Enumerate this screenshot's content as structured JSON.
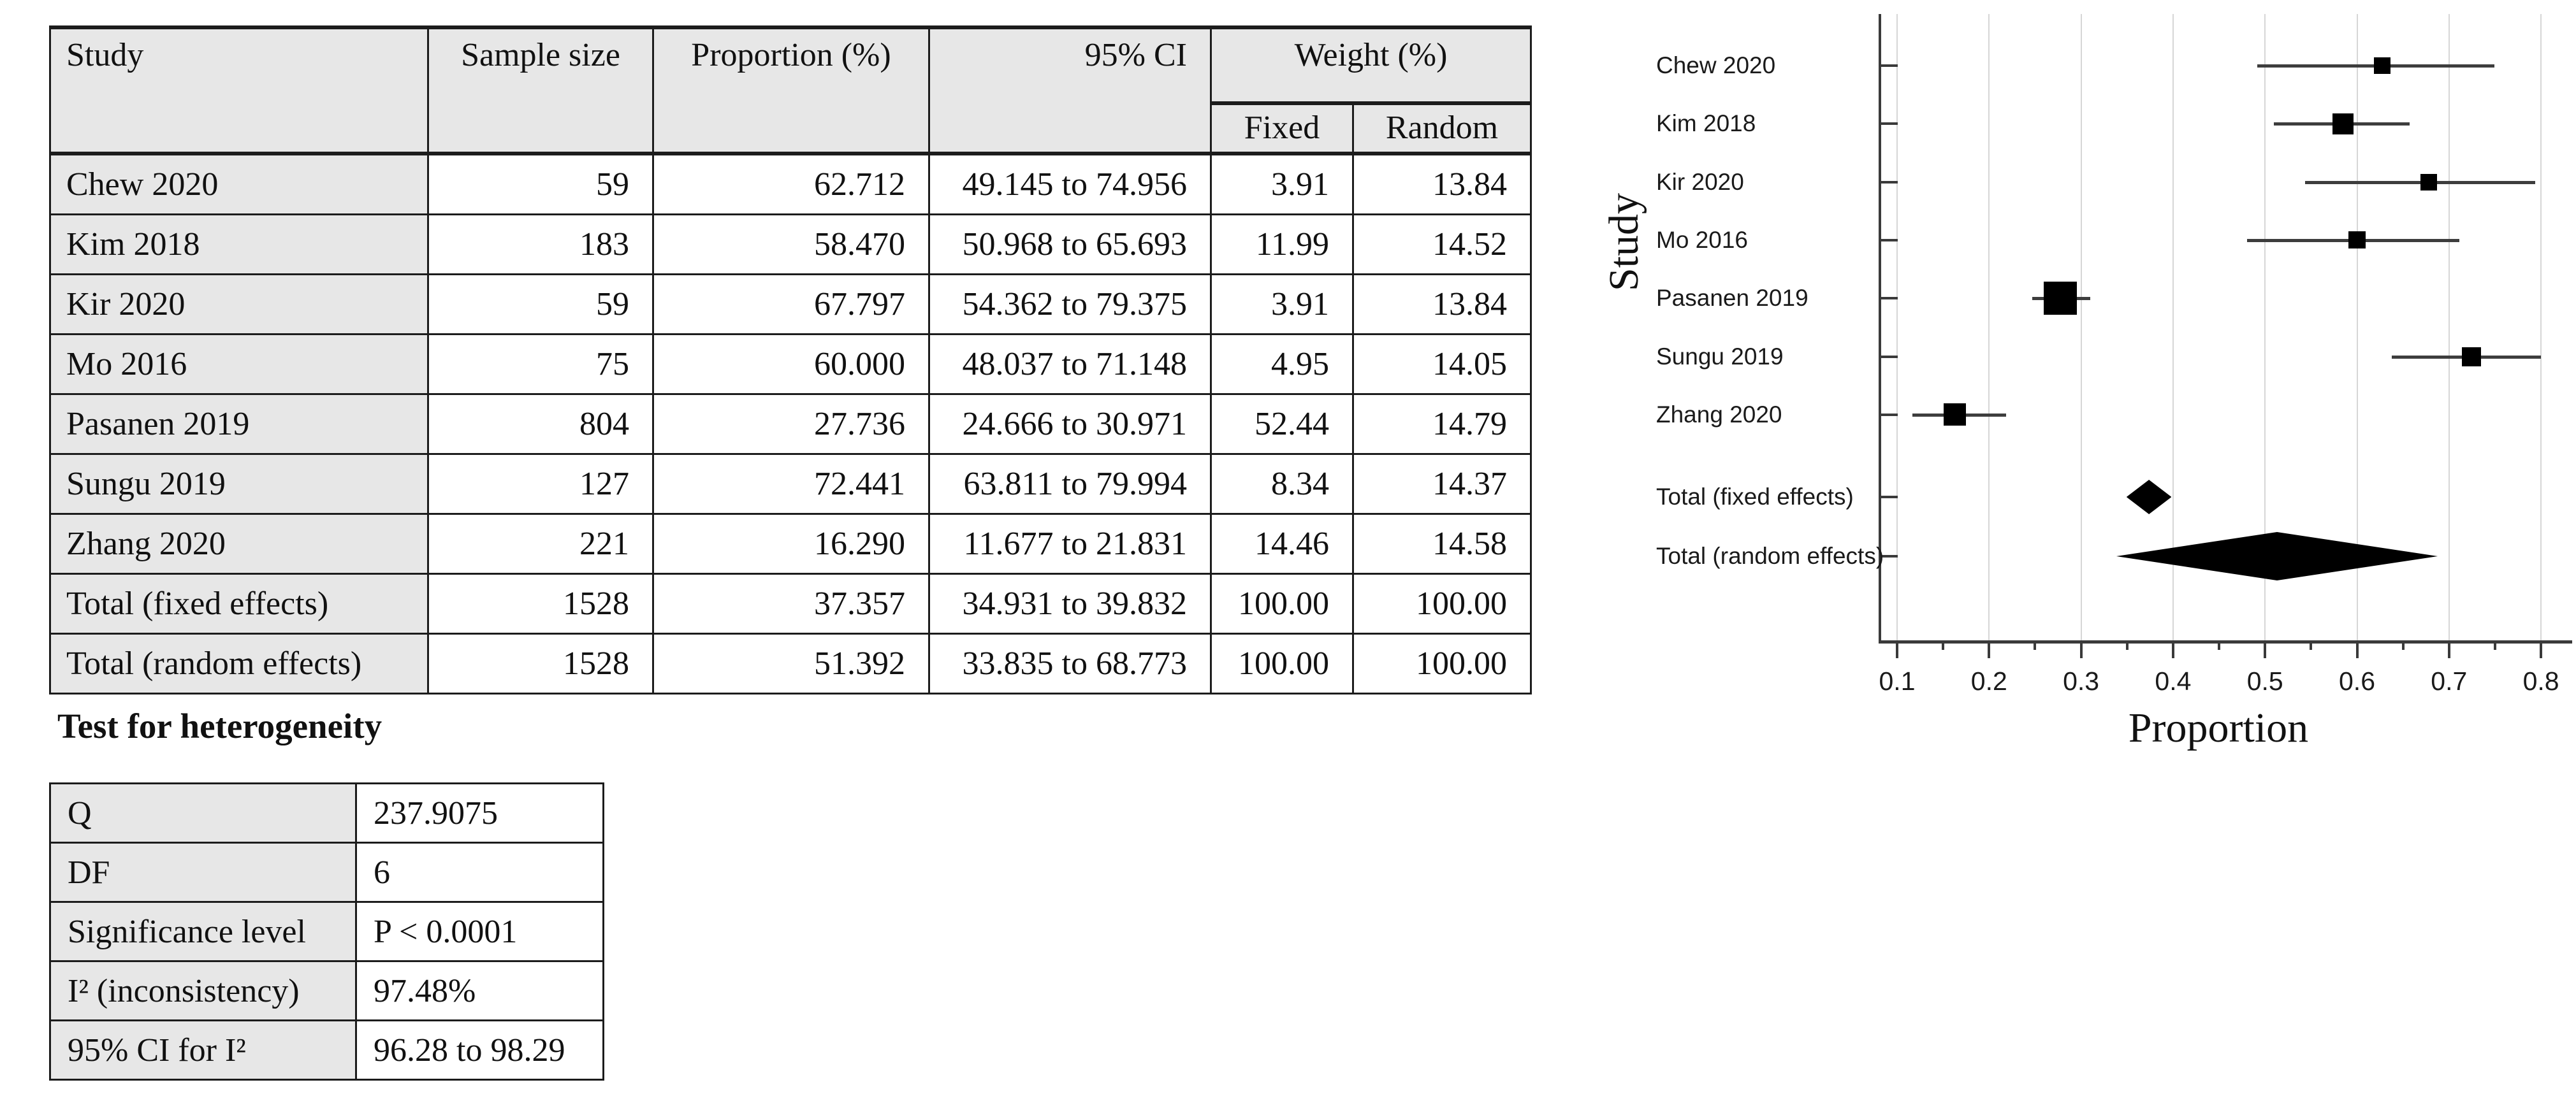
{
  "table": {
    "headers": {
      "study": "Study",
      "sample_size": "Sample size",
      "proportion": "Proportion (%)",
      "ci": "95% CI",
      "weight": "Weight (%)",
      "fixed": "Fixed",
      "random": "Random"
    },
    "rows": [
      {
        "study": "Chew 2020",
        "sample_size": "59",
        "proportion": "62.712",
        "ci": "49.145 to 74.956",
        "weight_fixed": "3.91",
        "weight_random": "13.84"
      },
      {
        "study": "Kim 2018",
        "sample_size": "183",
        "proportion": "58.470",
        "ci": "50.968 to 65.693",
        "weight_fixed": "11.99",
        "weight_random": "14.52"
      },
      {
        "study": "Kir 2020",
        "sample_size": "59",
        "proportion": "67.797",
        "ci": "54.362 to 79.375",
        "weight_fixed": "3.91",
        "weight_random": "13.84"
      },
      {
        "study": "Mo 2016",
        "sample_size": "75",
        "proportion": "60.000",
        "ci": "48.037 to 71.148",
        "weight_fixed": "4.95",
        "weight_random": "14.05"
      },
      {
        "study": "Pasanen 2019",
        "sample_size": "804",
        "proportion": "27.736",
        "ci": "24.666 to 30.971",
        "weight_fixed": "52.44",
        "weight_random": "14.79"
      },
      {
        "study": "Sungu 2019",
        "sample_size": "127",
        "proportion": "72.441",
        "ci": "63.811 to 79.994",
        "weight_fixed": "8.34",
        "weight_random": "14.37"
      },
      {
        "study": "Zhang 2020",
        "sample_size": "221",
        "proportion": "16.290",
        "ci": "11.677 to 21.831",
        "weight_fixed": "14.46",
        "weight_random": "14.58"
      },
      {
        "study": "Total (fixed effects)",
        "sample_size": "1528",
        "proportion": "37.357",
        "ci": "34.931 to 39.832",
        "weight_fixed": "100.00",
        "weight_random": "100.00"
      },
      {
        "study": "Total (random effects)",
        "sample_size": "1528",
        "proportion": "51.392",
        "ci": "33.835 to 68.773",
        "weight_fixed": "100.00",
        "weight_random": "100.00"
      }
    ]
  },
  "heterogeneity": {
    "title": "Test for heterogeneity",
    "rows": [
      {
        "label": "Q",
        "value": "237.9075"
      },
      {
        "label": "DF",
        "value": "6"
      },
      {
        "label": "Significance level",
        "value": "P < 0.0001"
      },
      {
        "label": "I² (inconsistency)",
        "value": "97.48%"
      },
      {
        "label": "95% CI for I²",
        "value": "96.28 to 98.29"
      }
    ]
  },
  "chart_data": {
    "type": "scatter",
    "subtype": "forest-plot",
    "xlabel": "Proportion",
    "ylabel": "Study",
    "xlim": [
      0.1,
      0.8
    ],
    "x_major_ticks": [
      "0.1",
      "0.2",
      "0.3",
      "0.4",
      "0.5",
      "0.6",
      "0.7",
      "0.8"
    ],
    "x_minor_step": 0.05,
    "grid": true,
    "legend_position": "none",
    "marker_color": "#000000",
    "studies": [
      {
        "label": "Chew 2020",
        "proportion": 0.62712,
        "ci_low": 0.49145,
        "ci_high": 0.74956,
        "weight_fixed": 3.91,
        "weight_random": 13.84
      },
      {
        "label": "Kim 2018",
        "proportion": 0.5847,
        "ci_low": 0.50968,
        "ci_high": 0.65693,
        "weight_fixed": 11.99,
        "weight_random": 14.52
      },
      {
        "label": "Kir 2020",
        "proportion": 0.67797,
        "ci_low": 0.54362,
        "ci_high": 0.79375,
        "weight_fixed": 3.91,
        "weight_random": 13.84
      },
      {
        "label": "Mo 2016",
        "proportion": 0.6,
        "ci_low": 0.48037,
        "ci_high": 0.71148,
        "weight_fixed": 4.95,
        "weight_random": 14.05
      },
      {
        "label": "Pasanen 2019",
        "proportion": 0.27736,
        "ci_low": 0.24666,
        "ci_high": 0.30971,
        "weight_fixed": 52.44,
        "weight_random": 14.79
      },
      {
        "label": "Sungu 2019",
        "proportion": 0.72441,
        "ci_low": 0.63811,
        "ci_high": 0.79994,
        "weight_fixed": 8.34,
        "weight_random": 14.37
      },
      {
        "label": "Zhang 2020",
        "proportion": 0.1629,
        "ci_low": 0.11677,
        "ci_high": 0.21831,
        "weight_fixed": 14.46,
        "weight_random": 14.58
      }
    ],
    "totals": [
      {
        "label": "Total (fixed effects)",
        "proportion": 0.37357,
        "ci_low": 0.34931,
        "ci_high": 0.39832
      },
      {
        "label": "Total (random effects)",
        "proportion": 0.51392,
        "ci_low": 0.33835,
        "ci_high": 0.68773
      }
    ]
  },
  "colors": {
    "cell_gray": "#e7e7e7",
    "border": "#1c1c1c",
    "grid": "#d6d6d6",
    "marker": "#000000"
  }
}
